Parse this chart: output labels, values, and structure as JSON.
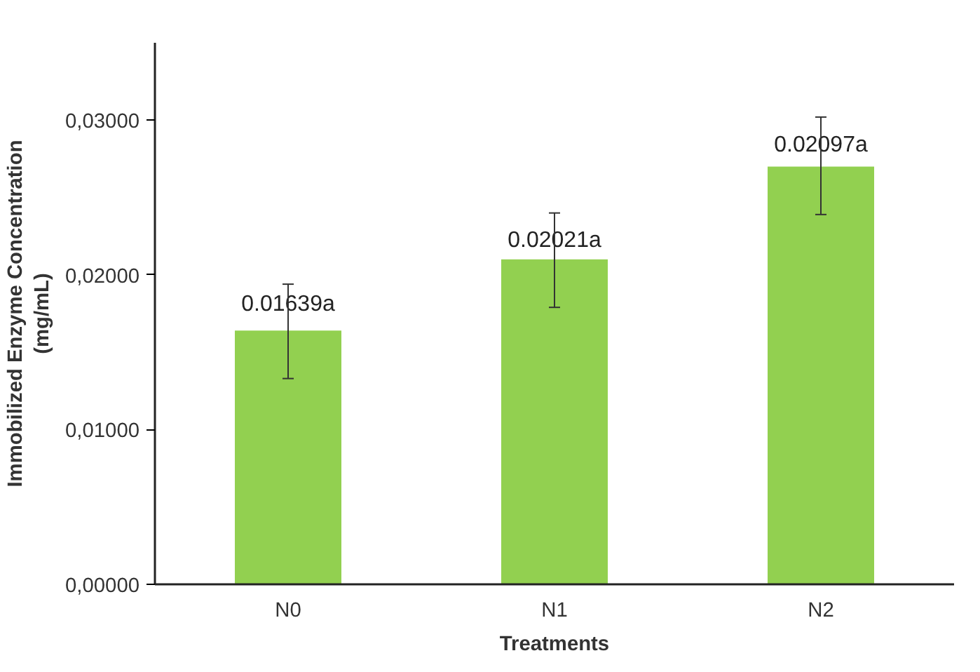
{
  "chart_data": {
    "type": "bar",
    "xlabel": "Treatments",
    "ylabel": "Immobilized Enzyme Concentration\n(mg/mL)",
    "categories": [
      "N0",
      "N1",
      "N2"
    ],
    "values": [
      0.0164,
      0.021,
      0.027
    ],
    "errors": [
      [
        0.0133,
        0.0194
      ],
      [
        0.0179,
        0.024
      ],
      [
        0.0239,
        0.0302
      ]
    ],
    "annotations": [
      {
        "text": "0.01639a",
        "x": "N0",
        "y": 0.0181
      },
      {
        "text": "0.02021a",
        "x": "N1",
        "y": 0.0222
      },
      {
        "text": "0.02097a",
        "x": "N2",
        "y": 0.0284
      }
    ],
    "color": "#92d050",
    "ylim": [
      0,
      0.035
    ],
    "yticks": [
      {
        "value": 0,
        "label": "0,00000"
      },
      {
        "value": 0.01,
        "label": "0,01000"
      },
      {
        "value": 0.02,
        "label": "0,02000"
      },
      {
        "value": 0.03,
        "label": "0,03000"
      }
    ],
    "grid": false
  }
}
